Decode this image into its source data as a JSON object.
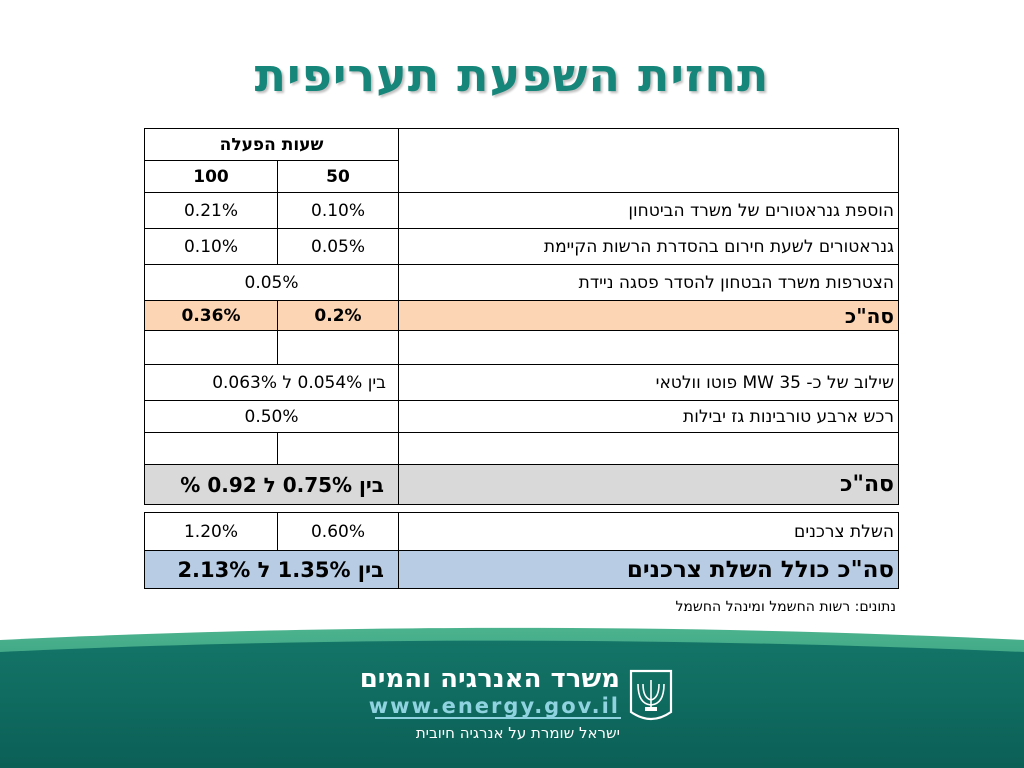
{
  "title": "תחזית השפעת תעריפית",
  "table": {
    "hours_header": "שעות הפעלה",
    "col_50": "50",
    "col_100": "100",
    "rows": [
      {
        "label": "הוספת גנראטורים של משרד הביטחון",
        "v50": "0.10%",
        "v100": "0.21%"
      },
      {
        "label": "גנראטורים לשעת חירום בהסדרת הרשות הקיימת",
        "v50": "0.05%",
        "v100": "0.10%"
      },
      {
        "label": "הצטרפות משרד הבטחון להסדר פסגה ניידת",
        "merged": "0.05%"
      }
    ],
    "subtotal": {
      "label": "סה\"כ",
      "v50": "0.2%",
      "v100": "0.36%"
    },
    "pv": {
      "label": "שילוב של כ- 35 MW פוטו וולטאי",
      "value": "בין 0.054% ל 0.063%"
    },
    "turbines": {
      "label": "רכש ארבע טורבינות גז יבילות",
      "value": "0.50%"
    },
    "total": {
      "label": "סה\"כ",
      "value": "בין 0.75% ל 0.92 %"
    }
  },
  "table2": {
    "consumer": {
      "label": "השלת צרכנים",
      "v50": "0.60%",
      "v100": "1.20%"
    },
    "total_incl": {
      "label": "סה\"כ כולל השלת צרכנים",
      "value": "בין 1.35% ל 2.13%"
    }
  },
  "source_note": "נתונים: רשות החשמל ומינהל החשמל",
  "footer": {
    "ministry_name": "משרד האנרגיה והמים",
    "url": "www.energy.gov.il",
    "slogan": "ישראל שומרת על אנרגיה חיובית"
  },
  "colors": {
    "title": "#16857a",
    "subtotal_row": "#fcd5b5",
    "total_row": "#bfbfbf",
    "final_row": "#b8cce4",
    "footer_dark": "#0e6a60",
    "footer_accent": "#3aaa8f"
  }
}
